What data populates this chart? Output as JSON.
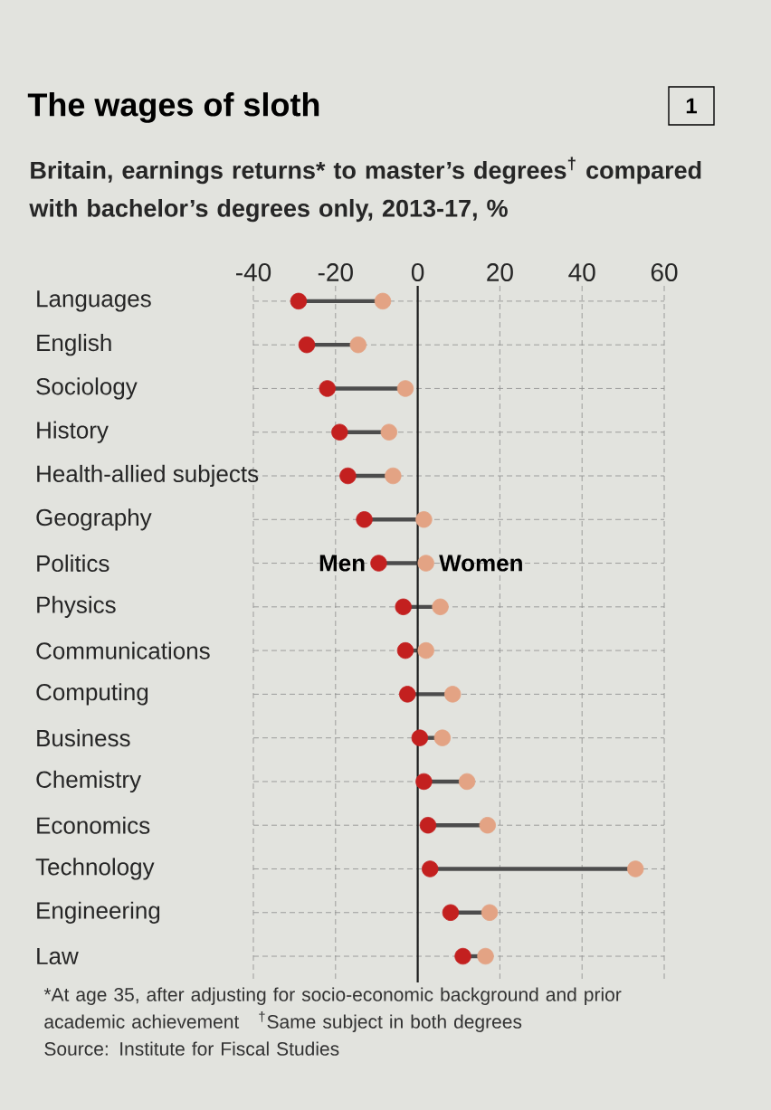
{
  "chart_data": {
    "type": "scatter",
    "title": "The wages of sloth",
    "subtitle": "Britain, earnings returns* to master’s degrees$^{†}$ compared with bachelor’s degrees only, 2013-17, %",
    "categories": [
      "Languages",
      "English",
      "Sociology",
      "History",
      "Health-allied subjects",
      "Geography",
      "Politics",
      "Physics",
      "Communications",
      "Computing",
      "Business",
      "Chemistry",
      "Economics",
      "Technology",
      "Engineering",
      "Law"
    ],
    "orientation": "horizontal",
    "series": [
      {
        "name": "Men",
        "color": "#c3201f",
        "values": [
          -29,
          -27,
          -22,
          -19,
          -17,
          -13,
          -9.5,
          -3.5,
          -3,
          -2.5,
          0.5,
          1.5,
          2.5,
          3,
          8,
          11
        ]
      },
      {
        "name": "Women",
        "color": "#e3a384",
        "values": [
          -8.5,
          -14.5,
          -3,
          -7,
          -6,
          1.5,
          2,
          5.5,
          2,
          8.5,
          6,
          12,
          17,
          53,
          17.5,
          16.5
        ]
      }
    ],
    "xlim": [
      -40,
      60
    ],
    "xticks": [
      -40,
      -20,
      0,
      20,
      40,
      60
    ],
    "ref_lines": [
      {
        "axis": "x",
        "value": 0,
        "color": "#1a1a1a"
      }
    ],
    "grid": true,
    "marker": "circle",
    "annotations": [
      "1",
      "*At age 35, after adjusting for socio-economic background and prior academic achievement",
      "$^{†}$Same subject in both degrees",
      "Source: Institute for Fiscal Studies"
    ]
  }
}
